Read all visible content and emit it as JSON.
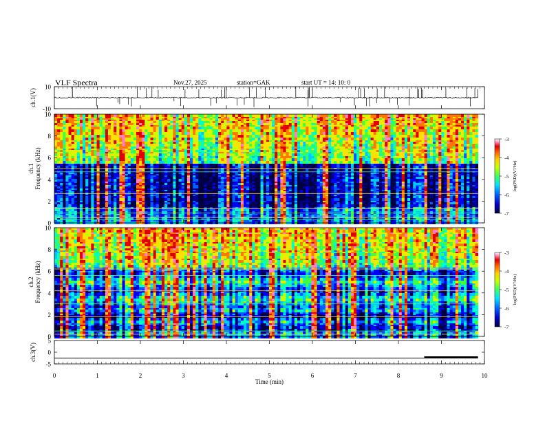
{
  "header": {
    "title": "VLF  Spectra",
    "date": "Nov.27, 2025",
    "station": "station=GAK",
    "start": "start  UT  =   14: 10: 0"
  },
  "colors": {
    "palette": [
      "#000040",
      "#00008b",
      "#0000ff",
      "#0060ff",
      "#00c8ff",
      "#00ffc8",
      "#40ff40",
      "#c8ff00",
      "#ffe000",
      "#ff7800",
      "#e00000",
      "#ff80c0",
      "#ffffff"
    ],
    "trace": "#000000"
  },
  "chart_data": [
    {
      "type": "line",
      "panel": "ch1-waveform",
      "ylabel": "ch.1(V)",
      "ylim": [
        -10,
        10
      ],
      "yticks": [
        "10",
        "-10"
      ],
      "x": [
        0,
        10
      ],
      "series": [
        {
          "name": "ch.1",
          "baseline": 0,
          "noise": 1.2
        }
      ]
    },
    {
      "type": "heatmap",
      "panel": "ch1-spectrogram",
      "ylabel": "ch.1",
      "ylabel2": "Frequency  (kHz)",
      "ylim": [
        0,
        10
      ],
      "yticks": [
        "0",
        "2",
        "4",
        "6",
        "8",
        "10"
      ],
      "colorbar": {
        "label": "log(PSD)(V²/Hz)",
        "range": [
          -7,
          -3
        ],
        "ticks": [
          "-3",
          "-4",
          "-5",
          "-6",
          "-7"
        ]
      }
    },
    {
      "type": "heatmap",
      "panel": "ch2-spectrogram",
      "ylabel": "ch.2",
      "ylabel2": "Frequency  (kHz)",
      "ylim": [
        0,
        10
      ],
      "yticks": [
        "0",
        "2",
        "4",
        "6",
        "8",
        "10"
      ],
      "colorbar": {
        "label": "log(PSD)(V²/Hz)",
        "range": [
          -7,
          -3
        ],
        "ticks": [
          "-3",
          "-4",
          "-5",
          "-6",
          "-7"
        ]
      }
    },
    {
      "type": "line",
      "panel": "ch3-waveform",
      "ylabel": "ch.3(V)",
      "ylim": [
        -5,
        5
      ],
      "yticks": [
        "5",
        "0",
        "-5"
      ],
      "series": [
        {
          "name": "ch.3",
          "level": -2.5,
          "step_at_min": 8.5,
          "marker_from": 8.6,
          "marker_to": 9.8
        }
      ]
    }
  ],
  "xaxis": {
    "label": "Time  (min)",
    "ticks": [
      "0",
      "1",
      "2",
      "3",
      "4",
      "5",
      "6",
      "7",
      "8",
      "9",
      "10"
    ],
    "range": [
      0,
      10
    ],
    "data_end": 9.85
  }
}
